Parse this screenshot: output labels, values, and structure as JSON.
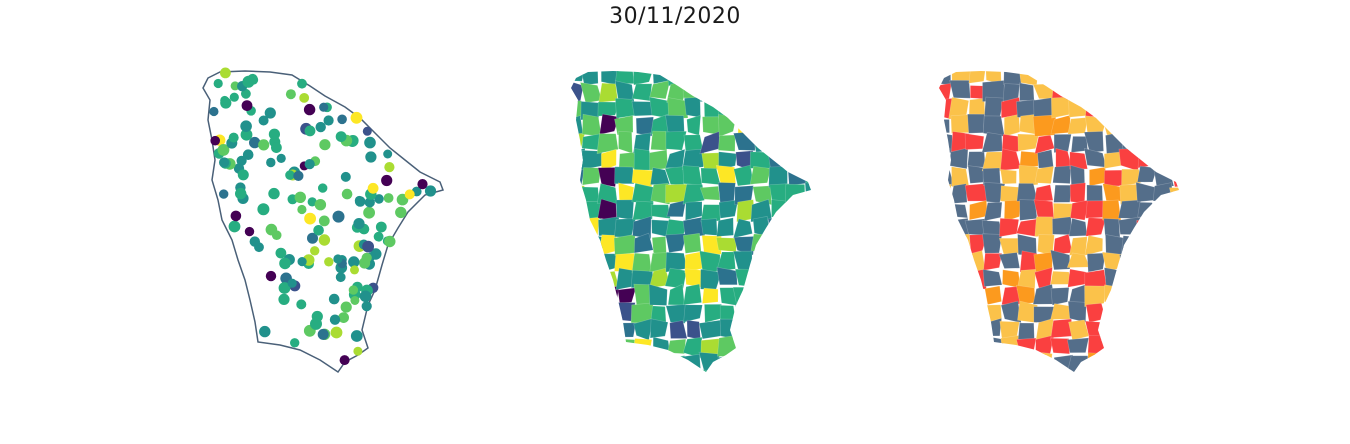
{
  "title": "30/11/2020",
  "maps": [
    {
      "kind": "points",
      "outline_color": "#4a6078",
      "palette": [
        "#440154",
        "#3b528b",
        "#2c728e",
        "#21918c",
        "#27ad81",
        "#5ec962",
        "#aadc32",
        "#fde725"
      ]
    },
    {
      "kind": "choropleth-continuous",
      "palette": [
        "#440154",
        "#3b528b",
        "#2c728e",
        "#21918c",
        "#27ad81",
        "#5ec962",
        "#aadc32",
        "#fde725"
      ]
    },
    {
      "kind": "choropleth-categorical",
      "palette": [
        "#546e8a",
        "#fbc24a",
        "#fa4040",
        "#fc9a1e"
      ]
    }
  ]
}
